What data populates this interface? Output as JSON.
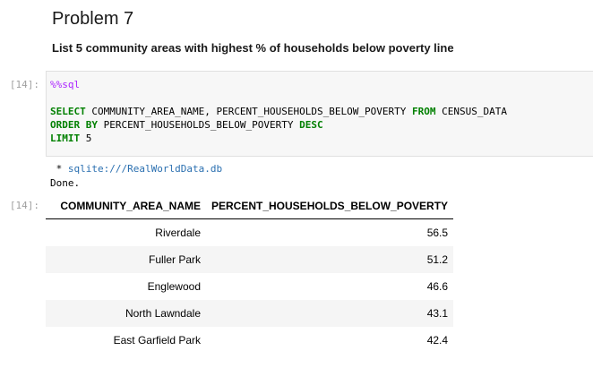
{
  "markdown": {
    "title": "Problem 7",
    "subtitle": "List 5 community areas with highest % of households below poverty line"
  },
  "code_cell": {
    "prompt": "[14]:",
    "magic": "%%sql",
    "line2_kw1": "SELECT",
    "line2_rest": " COMMUNITY_AREA_NAME, PERCENT_HOUSEHOLDS_BELOW_POVERTY ",
    "line2_kw2": "FROM",
    "line2_tail": " CENSUS_DATA",
    "line3_kw1": "ORDER BY",
    "line3_rest": " PERCENT_HOUSEHOLDS_BELOW_POVERTY ",
    "line3_kw2": "DESC",
    "line4_kw": "LIMIT",
    "line4_rest": " 5"
  },
  "output": {
    "prompt": "[14]:",
    "connection_prefix": " * ",
    "connection": "sqlite:///RealWorldData.db",
    "done": "Done.",
    "columns": [
      "COMMUNITY_AREA_NAME",
      "PERCENT_HOUSEHOLDS_BELOW_POVERTY"
    ],
    "rows": [
      [
        "Riverdale",
        "56.5"
      ],
      [
        "Fuller Park",
        "51.2"
      ],
      [
        "Englewood",
        "46.6"
      ],
      [
        "North Lawndale",
        "43.1"
      ],
      [
        "East Garfield Park",
        "42.4"
      ]
    ]
  }
}
